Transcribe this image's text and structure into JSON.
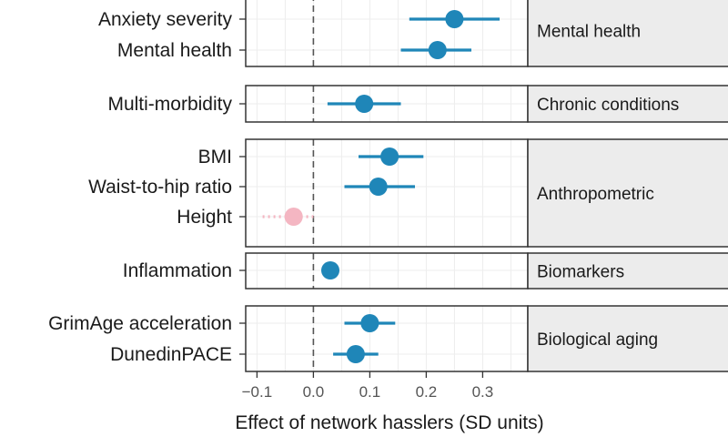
{
  "chart_data": {
    "type": "forest",
    "xlabel": "Effect of network hasslers (SD units)",
    "xlim": [
      -0.12,
      0.38
    ],
    "xticks": [
      -0.1,
      0.0,
      0.1,
      0.2,
      0.3
    ],
    "xtick_labels": [
      "−0.1",
      "0.0",
      "0.1",
      "0.2",
      "0.3"
    ],
    "reference_line": 0,
    "colors": {
      "significant": "#1f86b8",
      "nonsignificant": "#f4b6c2",
      "strip_fill": "#ececec",
      "grid": "#ededed"
    },
    "groups": [
      {
        "label": "Mental health",
        "items": [
          {
            "label": "Anxiety severity",
            "estimate": 0.25,
            "lower": 0.17,
            "upper": 0.33,
            "significant": true
          },
          {
            "label": "Mental health",
            "estimate": 0.22,
            "lower": 0.155,
            "upper": 0.28,
            "significant": true
          }
        ]
      },
      {
        "label": "Chronic conditions",
        "items": [
          {
            "label": "Multi-morbidity",
            "estimate": 0.09,
            "lower": 0.025,
            "upper": 0.155,
            "significant": true
          }
        ]
      },
      {
        "label": "Anthropometric",
        "items": [
          {
            "label": "BMI",
            "estimate": 0.135,
            "lower": 0.08,
            "upper": 0.195,
            "significant": true
          },
          {
            "label": "Waist-to-hip ratio",
            "estimate": 0.115,
            "lower": 0.055,
            "upper": 0.18,
            "significant": true
          },
          {
            "label": "Height",
            "estimate": -0.035,
            "lower": -0.09,
            "upper": 0.0,
            "significant": false
          }
        ]
      },
      {
        "label": "Biomarkers",
        "items": [
          {
            "label": "Inflammation",
            "estimate": 0.03,
            "lower": 0.015,
            "upper": 0.045,
            "significant": true
          }
        ]
      },
      {
        "label": "Biological aging",
        "items": [
          {
            "label": "GrimAge acceleration",
            "estimate": 0.1,
            "lower": 0.055,
            "upper": 0.145,
            "significant": true
          },
          {
            "label": "DunedinPACE",
            "estimate": 0.075,
            "lower": 0.035,
            "upper": 0.115,
            "significant": true
          }
        ]
      }
    ]
  }
}
